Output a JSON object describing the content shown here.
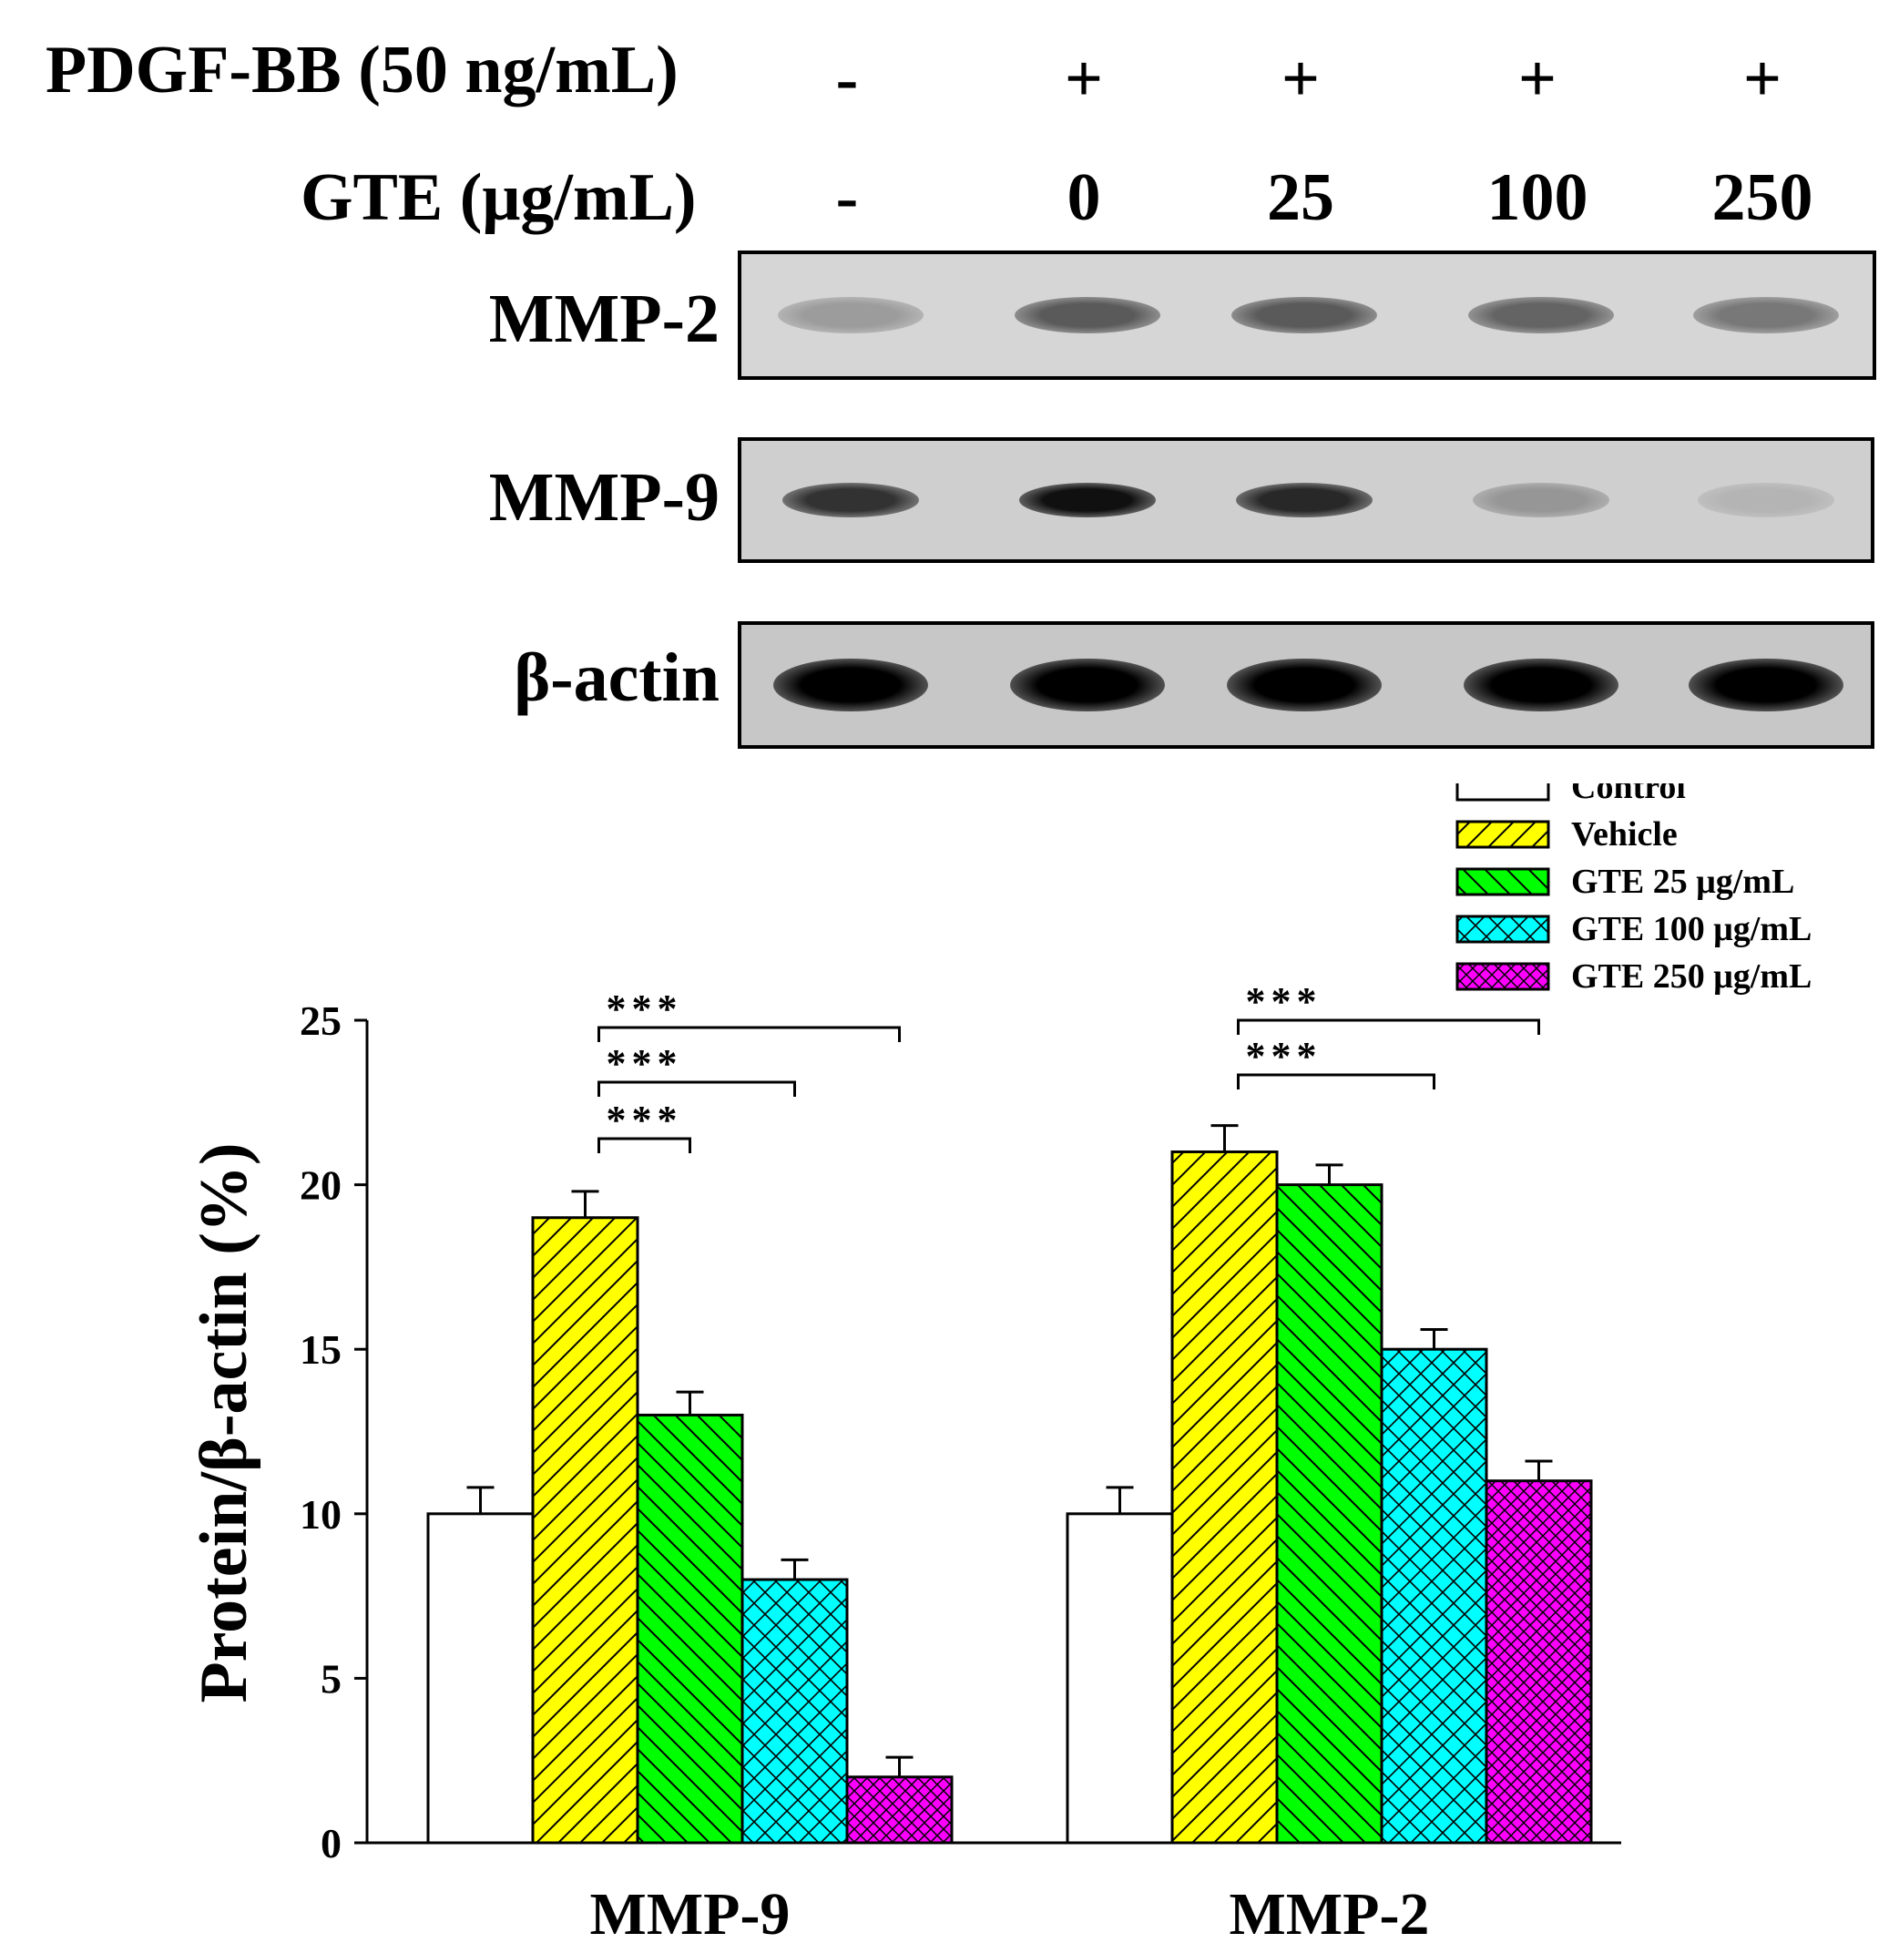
{
  "header": {
    "row1_label": "PDGF-BB (50 ng/mL)",
    "row1_values": [
      "-",
      "+",
      "+",
      "+",
      "+"
    ],
    "row2_label": "GTE (μg/mL)",
    "row2_values": [
      "-",
      "0",
      "25",
      "100",
      "250"
    ]
  },
  "blots": [
    {
      "label": "MMP-2",
      "intensities": [
        0.22,
        0.55,
        0.55,
        0.5,
        0.4
      ]
    },
    {
      "label": "MMP-9",
      "intensities": [
        0.75,
        0.92,
        0.8,
        0.25,
        0.1
      ]
    },
    {
      "label": "β-actin",
      "intensities": [
        1,
        1,
        1,
        1,
        1
      ]
    }
  ],
  "chart_data": {
    "type": "bar",
    "categories": [
      "MMP-9",
      "MMP-2"
    ],
    "ylabel": "Protein/β-actin (%)",
    "xlabel": "",
    "ylim": [
      0,
      25
    ],
    "yticks": [
      0,
      5,
      10,
      15,
      20,
      25
    ],
    "grid": false,
    "legend_position": "top-right",
    "series": [
      {
        "name": "Control",
        "values": [
          10,
          10
        ],
        "errors": [
          0.8,
          0.8
        ],
        "color": "#ffffff",
        "pattern": "none"
      },
      {
        "name": "Vehicle",
        "values": [
          19,
          21
        ],
        "errors": [
          0.8,
          0.8
        ],
        "color": "#ffff00",
        "pattern": "forward-diagonal"
      },
      {
        "name": "GTE 25 μg/mL",
        "values": [
          13,
          20
        ],
        "errors": [
          0.7,
          0.6
        ],
        "color": "#00ff00",
        "pattern": "backward-diagonal"
      },
      {
        "name": "GTE 100 μg/mL",
        "values": [
          8,
          15
        ],
        "errors": [
          0.6,
          0.6
        ],
        "color": "#00ffff",
        "pattern": "cross-hatch"
      },
      {
        "name": "GTE 250 μg/mL",
        "values": [
          2,
          11
        ],
        "errors": [
          0.6,
          0.6
        ],
        "color": "#ff00ff",
        "pattern": "fine-cross-hatch"
      }
    ],
    "significance": [
      {
        "category": "MMP-9",
        "from_series": "Vehicle",
        "to_series": "GTE 25 μg/mL",
        "label": "***"
      },
      {
        "category": "MMP-9",
        "from_series": "Vehicle",
        "to_series": "GTE 100 μg/mL",
        "label": "***"
      },
      {
        "category": "MMP-9",
        "from_series": "Vehicle",
        "to_series": "GTE 250 μg/mL",
        "label": "***"
      },
      {
        "category": "MMP-2",
        "from_series": "Vehicle",
        "to_series": "GTE 100 μg/mL",
        "label": "***"
      },
      {
        "category": "MMP-2",
        "from_series": "Vehicle",
        "to_series": "GTE 250 μg/mL",
        "label": "***"
      }
    ]
  }
}
